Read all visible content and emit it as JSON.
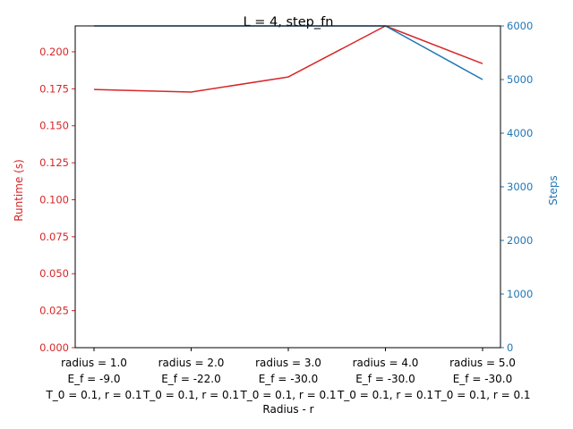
{
  "chart_data": {
    "type": "line",
    "title": "L = 4, step_fn",
    "xlabel": "Radius - r",
    "ylabel_left": "Runtime (s)",
    "ylabel_right": "Steps",
    "categories": [
      [
        "radius = 1.0",
        "E_f = -9.0",
        "T_0 = 0.1, r = 0.1"
      ],
      [
        "radius = 2.0",
        "E_f = -22.0",
        "T_0 = 0.1, r = 0.1"
      ],
      [
        "radius = 3.0",
        "E_f = -30.0",
        "T_0 = 0.1, r = 0.1"
      ],
      [
        "radius = 4.0",
        "E_f = -30.0",
        "T_0 = 0.1, r = 0.1"
      ],
      [
        "radius = 5.0",
        "E_f = -30.0",
        "T_0 = 0.1, r = 0.1"
      ]
    ],
    "series": [
      {
        "name": "Runtime (s)",
        "axis": "left",
        "color": "#d62728",
        "values": [
          0.1745,
          0.1728,
          0.183,
          0.2175,
          0.192
        ]
      },
      {
        "name": "Steps",
        "axis": "right",
        "color": "#1f77b4",
        "values": [
          6000,
          6000,
          6000,
          6000,
          5000
        ]
      }
    ],
    "ylim_left": [
      0,
      0.2175
    ],
    "ylim_right": [
      0,
      6000
    ],
    "yticks_left": [
      "0.000",
      "0.025",
      "0.050",
      "0.075",
      "0.100",
      "0.125",
      "0.150",
      "0.175",
      "0.200"
    ],
    "yticks_right": [
      "0",
      "1000",
      "2000",
      "3000",
      "4000",
      "5000",
      "6000"
    ],
    "grid": false,
    "legend": "none"
  }
}
